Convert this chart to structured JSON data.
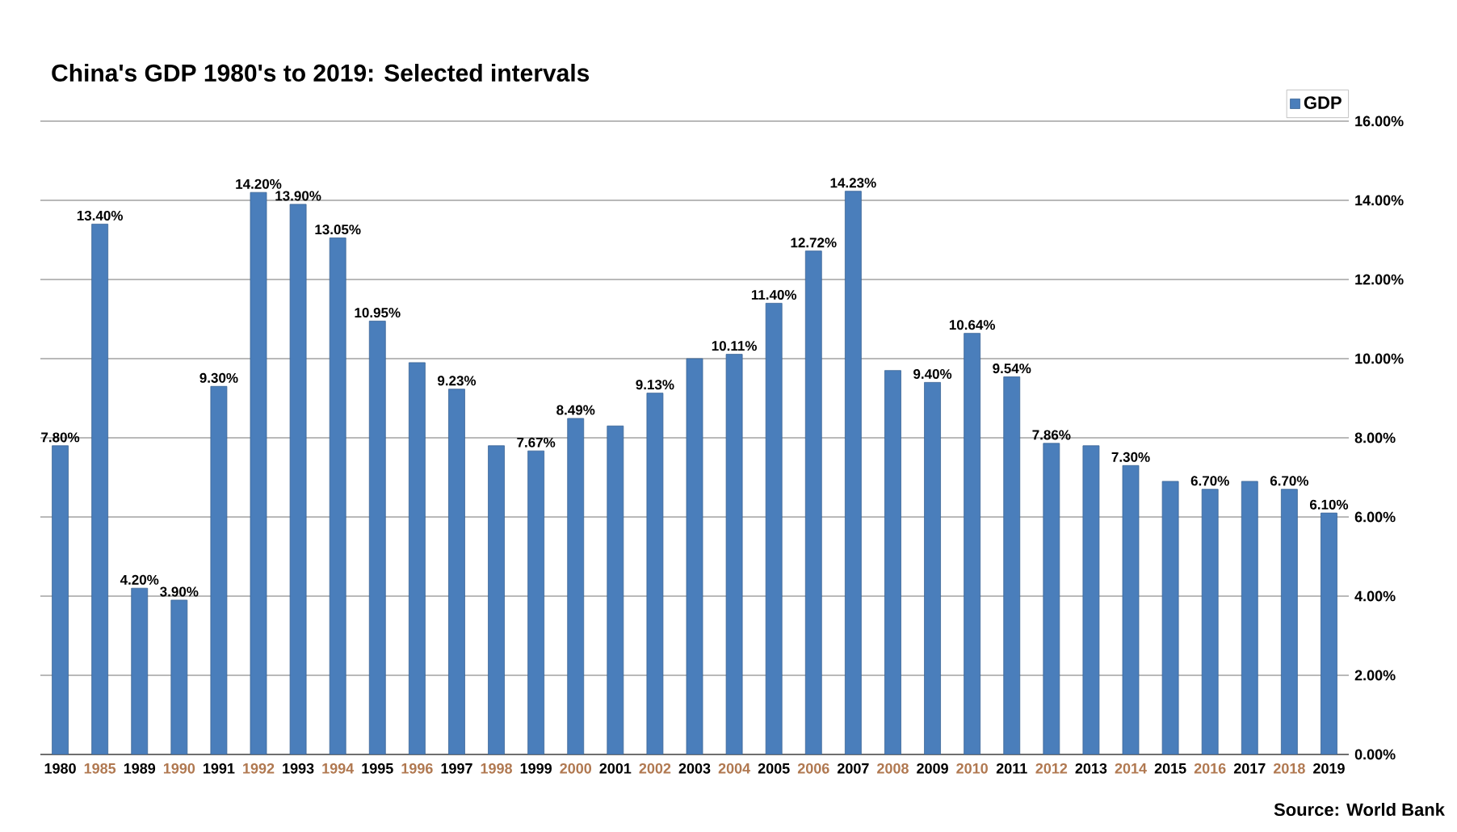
{
  "chart_data": {
    "type": "bar",
    "title": "China's GDP 1980's to 2019: Selected intervals",
    "categories": [
      "1980",
      "1985",
      "1989",
      "1990",
      "1991",
      "1992",
      "1993",
      "1994",
      "1995",
      "1996",
      "1997",
      "1998",
      "1999",
      "2000",
      "2001",
      "2002",
      "2003",
      "2004",
      "2005",
      "2006",
      "2007",
      "2008",
      "2009",
      "2010",
      "2011",
      "2012",
      "2013",
      "2014",
      "2015",
      "2016",
      "2017",
      "2018",
      "2019"
    ],
    "series": [
      {
        "name": "GDP",
        "color": "#4a7ebb",
        "values": [
          7.8,
          13.4,
          4.2,
          3.9,
          9.3,
          14.2,
          13.9,
          13.05,
          10.95,
          9.9,
          9.23,
          7.8,
          7.67,
          8.49,
          8.3,
          9.13,
          10.0,
          10.11,
          11.4,
          12.72,
          14.23,
          9.7,
          9.4,
          10.64,
          9.54,
          7.86,
          7.8,
          7.3,
          6.9,
          6.7,
          6.9,
          6.7,
          6.1
        ],
        "value_labels": [
          "7.80%",
          "13.40%",
          "4.20%",
          "3.90%",
          "9.30%",
          "14.20%",
          "13.90%",
          "13.05%",
          "10.95%",
          null,
          "9.23%",
          null,
          "7.67%",
          "8.49%",
          null,
          "9.13%",
          null,
          "10.11%",
          "11.40%",
          "12.72%",
          "14.23%",
          null,
          "9.40%",
          "10.64%",
          "9.54%",
          "7.86%",
          null,
          "7.30%",
          null,
          "6.70%",
          null,
          "6.70%",
          "6.10%"
        ]
      }
    ],
    "ylim": [
      0,
      16
    ],
    "yticks": [
      {
        "value": 0,
        "label": "0.00%"
      },
      {
        "value": 2,
        "label": "2.00%"
      },
      {
        "value": 4,
        "label": "4.00%"
      },
      {
        "value": 6,
        "label": "6.00%"
      },
      {
        "value": 8,
        "label": "8.00%"
      },
      {
        "value": 10,
        "label": "10.00%"
      },
      {
        "value": 12,
        "label": "12.00%"
      },
      {
        "value": 14,
        "label": "14.00%"
      },
      {
        "value": 16,
        "label": "16.00%"
      }
    ],
    "grid": "y",
    "legend": "top right",
    "annotations": [
      "Source: World Bank"
    ]
  }
}
